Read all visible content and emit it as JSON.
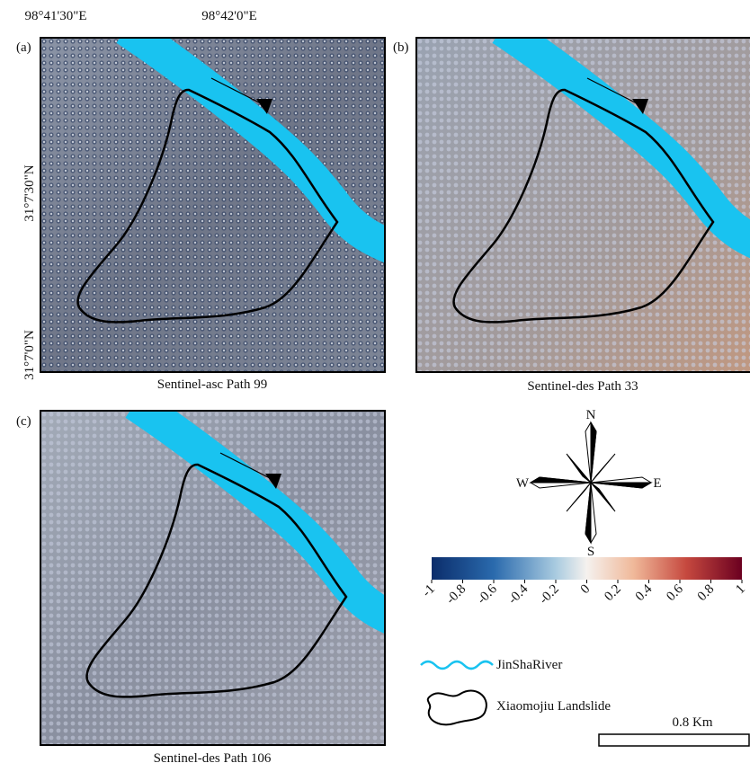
{
  "coordinates": {
    "top": [
      "98°41'30\"E",
      "98°42'0\"E"
    ],
    "left": [
      "31°7'30\"N",
      "31°7'0\"N"
    ]
  },
  "panels": [
    {
      "label": "(a)",
      "caption": "Sentinel-asc Path 99"
    },
    {
      "label": "(b)",
      "caption": "Sentinel-des Path 33"
    },
    {
      "label": "(c)",
      "caption": "Sentinel-des Path 106"
    }
  ],
  "compass": {
    "north": "N",
    "south": "S",
    "east": "E",
    "west": "W"
  },
  "colorbar": {
    "range": [
      -1,
      1
    ],
    "ticks": [
      -1,
      -0.8,
      -0.6,
      -0.4,
      -0.2,
      0,
      0.2,
      0.4,
      0.6,
      0.8,
      1
    ]
  },
  "legend": {
    "river": "JinShaRiver",
    "landslide": "Xiaomojiu Landslide"
  },
  "scale_bar": "0.8 Km"
}
